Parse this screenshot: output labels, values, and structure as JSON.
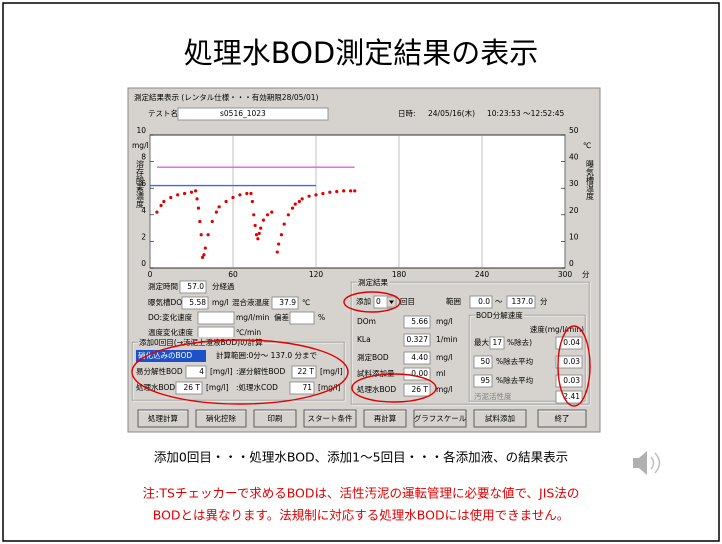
{
  "title": "処理水BOD測定結果の表示",
  "window": {
    "title": "測定結果表示 (レンタル仕様・・・有効期限28/05/01)",
    "test_label": "テスト名:",
    "test_name": "s0516_1023",
    "date_label": "日時:",
    "date": "24/05/16(木)",
    "time": "10:23:53 ～12:52:45"
  },
  "chart_data": {
    "type": "scatter",
    "y_unit": "mg/l",
    "y_label": "溶存酸素濃度",
    "y2_unit": "℃",
    "y2_label": "曝気槽温度",
    "x_unit": "分",
    "xlim": [
      0,
      300
    ],
    "xticks": [
      0,
      60,
      120,
      180,
      240,
      300
    ],
    "ylim": [
      0,
      10
    ],
    "yticks": [
      0,
      2,
      4,
      6,
      8,
      10
    ],
    "y2lim": [
      0,
      50
    ],
    "y2ticks": [
      0,
      10,
      20,
      30,
      40,
      50
    ],
    "series": [
      {
        "color": "#e00000",
        "x": [
          5,
          8,
          10,
          15,
          20,
          25,
          30,
          33,
          34,
          35,
          36,
          37,
          38,
          39,
          40,
          42,
          45,
          48,
          50,
          55,
          60,
          65,
          70,
          73,
          74,
          75,
          76,
          77,
          78,
          79,
          80,
          82,
          85,
          88,
          92,
          93,
          95,
          97,
          100,
          103,
          105,
          108,
          110,
          115,
          120,
          125,
          130,
          135,
          140,
          145,
          148
        ],
        "values": [
          4.2,
          4.7,
          5.0,
          5.3,
          5.5,
          5.6,
          5.7,
          5.8,
          5.2,
          4.5,
          3.5,
          2.5,
          0.8,
          1.0,
          1.5,
          2.5,
          3.5,
          4.2,
          4.6,
          5.0,
          5.3,
          5.5,
          5.6,
          5.6,
          5.0,
          4.0,
          3.2,
          2.5,
          2.2,
          2.6,
          3.0,
          3.6,
          4.0,
          4.2,
          1.2,
          1.8,
          2.5,
          3.3,
          4.0,
          4.5,
          4.8,
          5.0,
          5.2,
          5.4,
          5.5,
          5.6,
          5.7,
          5.75,
          5.8,
          5.8,
          5.8
        ]
      },
      {
        "color": "#e060e0",
        "axis": "y2",
        "x": [
          5,
          148
        ],
        "values": [
          37.9,
          37.9
        ]
      },
      {
        "color": "#4060ff",
        "x": [
          0,
          120
        ],
        "values": [
          6.2,
          6.2
        ]
      }
    ],
    "grid": true
  },
  "panel": {
    "elapsed_label": "測定時間",
    "elapsed": "57.0",
    "elapsed_unit": "分経過",
    "do_label": "曝気槽DO",
    "do": "5.58",
    "do_unit": "mg/l",
    "temp_label": "混合液温度",
    "temp": "37.9",
    "temp_unit": "℃",
    "do_rate_label": "DO:変化速度",
    "do_rate_unit": "mg/l/min",
    "dev_label": "偏差",
    "dev_unit": "%",
    "temp_rate_label": "温度変化速度",
    "temp_rate_unit": "℃/min",
    "calc": {
      "title": "添加0回目(→汚泥上澄液BOD)の計算",
      "mode": "硝化込みのBOD",
      "range": "計算範囲:0分～ 137.0 分まで",
      "easy_label": "易分解性BOD",
      "easy": "4",
      "unit": "[mg/l]",
      "slow_label": ":遅分解性BOD",
      "slow": "22 T",
      "tbod_label": "処理水BOD",
      "tbod": "26 T",
      "tcod_label": ":処理水COD",
      "tcod": "71"
    },
    "result": {
      "title": "測定結果",
      "add_label": "添加",
      "add": "0",
      "add_unit": "回目",
      "range_label": "範囲",
      "range_from": "0.0",
      "range_sep": "～",
      "range_to": "137.0",
      "range_unit": "分",
      "dom_label": "DOm",
      "dom": "5.66",
      "mgl": "mg/l",
      "kla_label": "KLa",
      "kla": "0.327",
      "kla_unit": "1/min",
      "bod_label": "測定BOD",
      "bod": "4.40",
      "sample_label": "試料添加量",
      "sample": "0.00",
      "sample_unit": "ml",
      "tbod_label": "処理水BOD",
      "tbod": "26 T"
    },
    "rate": {
      "title": "BOD分解速度",
      "unit": "速度(mg/l/min)",
      "max_label": "最大(",
      "max_pct": "17",
      "max_suffix": "%除去)",
      "max": "0.04",
      "p50": "50",
      "avg_label": "%除去平均",
      "p50_val": "0.03",
      "p95": "95",
      "p95_val": "0.03",
      "activity_label": "汚泥活性度",
      "activity": "2.41"
    }
  },
  "buttons": [
    "処理計算",
    "硝化控除",
    "印刷",
    "スタート条件",
    "再計算",
    "グラフスケール",
    "試料添加",
    "終了"
  ],
  "caption": "添加0回目・・・処理水BOD、添加1～5回目・・・各添加液、の結果表示",
  "note": [
    "注:TSチェッカーで求めるBODは、活性汚泥の運転管理に必要な値で、JIS法の",
    "BODとは異なります。法規制に対応する処理水BODには使用できません。"
  ]
}
